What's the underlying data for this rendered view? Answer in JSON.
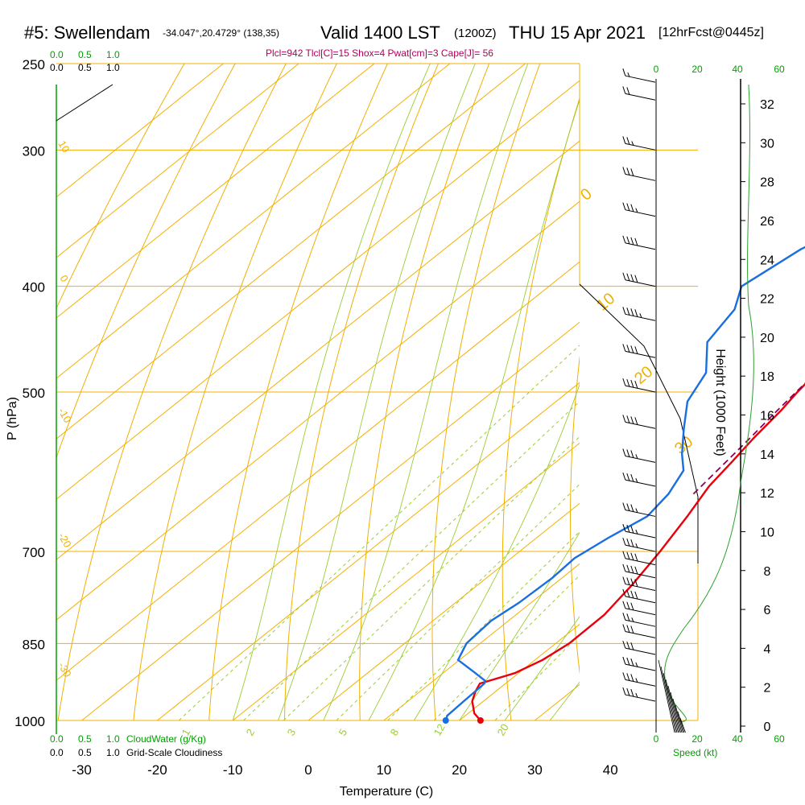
{
  "header": {
    "station": "#5: Swellendam",
    "coords": "-34.047°,20.4729° (138,35)",
    "valid": "Valid 1400 LST",
    "utc": "(1200Z)",
    "date": "THU 15 Apr 2021",
    "forecast": "[12hrFcst@0445z]"
  },
  "indices": "Plcl=942 Tlcl[C]=15 Shox=4 Pwat[cm]=3 Cape[J]= 56",
  "colors": {
    "isotherm": "#f5b000",
    "isobar": "#f0b000",
    "dry_adiabat": "#f0b000",
    "moist_adiabat": "#9acd32",
    "mixing_ratio": "#9acd32",
    "temperature": "#e8000b",
    "dewpoint": "#1a6fe0",
    "parcel": "#8b0057",
    "green_text": "#00a000"
  },
  "chart_data": {
    "type": "line",
    "title": "#5: Swellendam",
    "xlabel": "Temperature (C)",
    "ylabel": "P (hPa)",
    "x_ticks": [
      -30,
      -20,
      -10,
      0,
      10,
      20,
      30,
      40
    ],
    "y_ticks": [
      250,
      300,
      400,
      500,
      700,
      850,
      1000
    ],
    "height_axis_label": "Height (1000 Feet)",
    "height_ticks": [
      0,
      2,
      4,
      6,
      8,
      10,
      12,
      14,
      16,
      18,
      20,
      22,
      24,
      26,
      28,
      30,
      32
    ],
    "speed_axis_label": "Speed (kt)",
    "speed_ticks_bottom": [
      "0",
      "20",
      "40",
      "60"
    ],
    "speed_ticks_top": [
      "0",
      "20",
      "40",
      "60"
    ],
    "cloud_scale": [
      "0.0",
      "0.5",
      "1.0"
    ],
    "cloud_water_label": "CloudWater (g/Kg)",
    "cloudiness_label": "Grid-Scale Cloudiness",
    "mixing_ratio_labels": [
      "1",
      "2",
      "3",
      "5",
      "8",
      "12",
      "20"
    ],
    "isotherm_labels": [
      "10",
      "0",
      "-10",
      "-20",
      "-30"
    ],
    "dry_adiabat_labels": [
      "0",
      "10",
      "20",
      "30"
    ],
    "series": [
      {
        "name": "Temperature",
        "points": [
          [
            22.8,
            1000
          ],
          [
            20.8,
            985
          ],
          [
            18.5,
            960
          ],
          [
            17.3,
            940
          ],
          [
            16.6,
            925
          ],
          [
            19.5,
            905
          ],
          [
            21.0,
            880
          ],
          [
            21.8,
            850
          ],
          [
            21.7,
            800
          ],
          [
            20.4,
            750
          ],
          [
            18.6,
            700
          ],
          [
            16.4,
            650
          ],
          [
            14.3,
            610
          ],
          [
            13.3,
            580
          ],
          [
            12.2,
            550
          ],
          [
            11.3,
            520
          ],
          [
            10.4,
            500
          ],
          [
            8.6,
            450
          ],
          [
            7.0,
            400
          ],
          [
            4.5,
            350
          ],
          [
            1.6,
            300
          ],
          [
            -1.2,
            260
          ]
        ]
      },
      {
        "name": "Dewpoint",
        "points": [
          [
            18.2,
            1000
          ],
          [
            17.6,
            990
          ],
          [
            17.4,
            960
          ],
          [
            17.2,
            925
          ],
          [
            16.9,
            920
          ],
          [
            14.3,
            905
          ],
          [
            9.8,
            880
          ],
          [
            8.2,
            850
          ],
          [
            7.7,
            810
          ],
          [
            8.4,
            780
          ],
          [
            8.7,
            740
          ],
          [
            8.4,
            710
          ],
          [
            9.5,
            680
          ],
          [
            11.1,
            650
          ],
          [
            10.2,
            620
          ],
          [
            8.3,
            590
          ],
          [
            5.4,
            570
          ],
          [
            1.4,
            540
          ],
          [
            -2.6,
            510
          ],
          [
            -4.9,
            480
          ],
          [
            -9.8,
            450
          ],
          [
            -11.6,
            420
          ],
          [
            -14.5,
            400
          ],
          [
            -12.8,
            370
          ],
          [
            -9.5,
            345
          ],
          [
            -5.4,
            325
          ],
          [
            -3.8,
            305
          ],
          [
            -5.7,
            265
          ]
        ]
      },
      {
        "name": "Parcel",
        "points": [
          [
            13.5,
            620
          ],
          [
            12.0,
            560
          ],
          [
            10.8,
            520
          ],
          [
            9.8,
            485
          ],
          [
            9.0,
            465
          ]
        ]
      }
    ],
    "wind_barbs": {
      "speeds_kt": [
        15,
        20,
        25,
        30,
        35,
        40,
        40,
        45,
        40,
        40,
        40,
        35,
        35,
        35,
        35,
        35,
        40,
        40,
        40,
        40,
        30,
        25,
        30,
        30,
        35,
        35,
        35
      ],
      "pressures_hpa": [
        260,
        270,
        300,
        320,
        345,
        370,
        400,
        430,
        465,
        500,
        540,
        580,
        610,
        650,
        680,
        700,
        720,
        740,
        760,
        780,
        800,
        820,
        840,
        870,
        900,
        930,
        960
      ]
    }
  }
}
